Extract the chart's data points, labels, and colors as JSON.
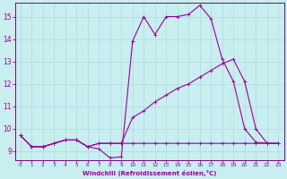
{
  "xlabel": "Windchill (Refroidissement éolien,°C)",
  "background_color": "#c8eef0",
  "grid_color": "#b0d8da",
  "line_color": "#990099",
  "spine_color": "#800080",
  "xlim": [
    -0.5,
    23.5
  ],
  "ylim": [
    8.6,
    15.6
  ],
  "xticks": [
    0,
    1,
    2,
    3,
    4,
    5,
    6,
    7,
    8,
    9,
    10,
    11,
    12,
    13,
    14,
    15,
    16,
    17,
    18,
    19,
    20,
    21,
    22,
    23
  ],
  "yticks": [
    9,
    10,
    11,
    12,
    13,
    14,
    15
  ],
  "curve1_x": [
    0,
    1,
    2,
    3,
    4,
    5,
    6,
    7,
    8,
    9,
    10,
    11,
    12,
    13,
    14,
    15,
    16,
    17,
    18,
    19,
    20,
    21,
    22,
    23
  ],
  "curve1_y": [
    9.7,
    9.2,
    9.2,
    9.35,
    9.5,
    9.5,
    9.2,
    9.1,
    8.7,
    8.75,
    13.9,
    15.0,
    14.2,
    15.0,
    15.0,
    15.1,
    15.5,
    14.9,
    13.1,
    12.1,
    10.0,
    9.4,
    9.35,
    9.35
  ],
  "curve2_x": [
    0,
    1,
    2,
    3,
    4,
    5,
    6,
    7,
    8,
    9,
    10,
    11,
    12,
    13,
    14,
    15,
    16,
    17,
    18,
    19,
    20,
    21,
    22,
    23
  ],
  "curve2_y": [
    9.7,
    9.2,
    9.2,
    9.35,
    9.5,
    9.5,
    9.2,
    9.35,
    9.35,
    9.35,
    10.5,
    10.8,
    11.2,
    11.5,
    11.8,
    12.0,
    12.3,
    12.6,
    12.9,
    13.1,
    12.1,
    10.0,
    9.35,
    9.35
  ],
  "curve3_x": [
    0,
    1,
    2,
    3,
    4,
    5,
    6,
    7,
    8,
    9,
    10,
    11,
    12,
    13,
    14,
    15,
    16,
    17,
    18,
    19,
    20,
    21,
    22,
    23
  ],
  "curve3_y": [
    9.7,
    9.2,
    9.2,
    9.35,
    9.5,
    9.5,
    9.2,
    9.35,
    9.35,
    9.35,
    9.35,
    9.35,
    9.35,
    9.35,
    9.35,
    9.35,
    9.35,
    9.35,
    9.35,
    9.35,
    9.35,
    9.35,
    9.35,
    9.35
  ]
}
